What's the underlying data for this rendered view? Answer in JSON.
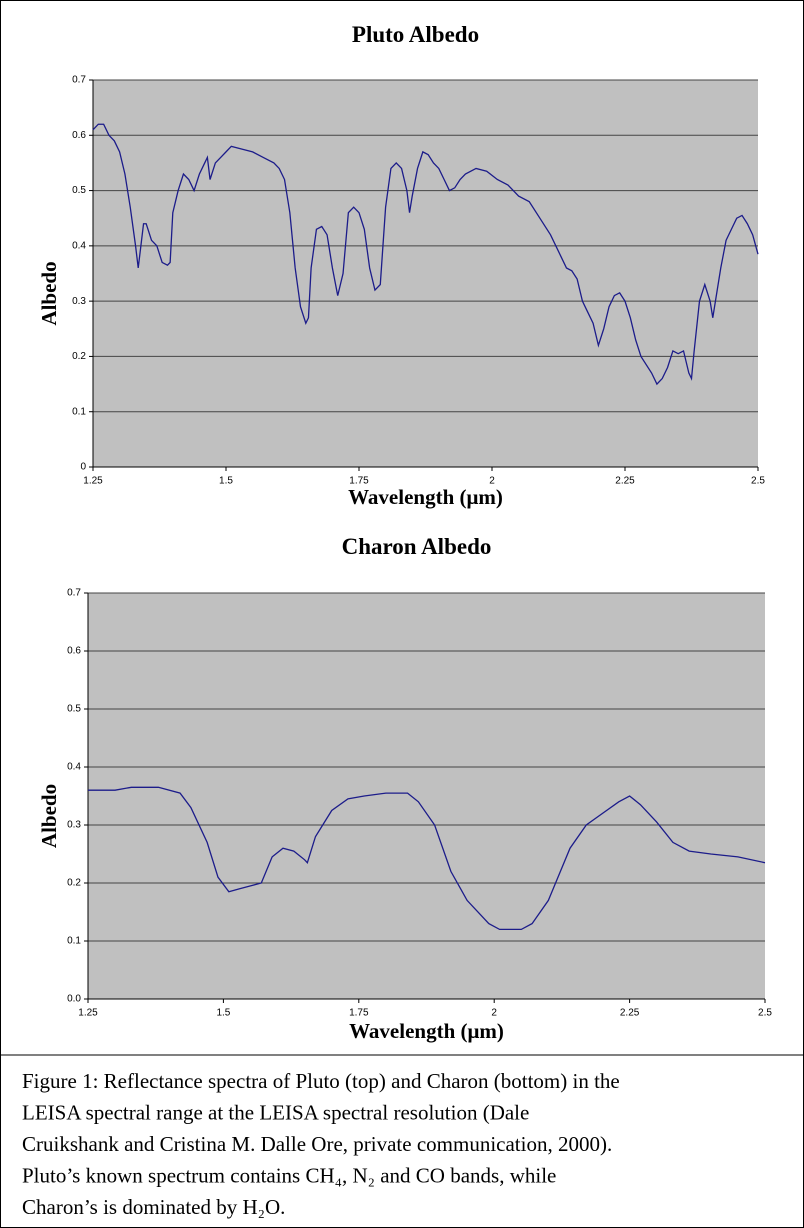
{
  "chart_data": [
    {
      "type": "line",
      "title": "Pluto Albedo",
      "xlabel": "Wavelength (μm)",
      "ylabel": "Albedo",
      "color": "#1c1c8a",
      "grid": true,
      "xlim": [
        1.25,
        2.5
      ],
      "xticks": [
        1.25,
        1.5,
        1.75,
        2,
        2.25,
        2.5
      ],
      "ylim": [
        0,
        0.7
      ],
      "yticks": [
        0,
        0.1,
        0.2,
        0.3,
        0.4,
        0.5,
        0.6,
        0.7
      ],
      "x": [
        1.25,
        1.26,
        1.27,
        1.28,
        1.29,
        1.3,
        1.31,
        1.32,
        1.33,
        1.335,
        1.345,
        1.35,
        1.36,
        1.37,
        1.38,
        1.39,
        1.395,
        1.4,
        1.41,
        1.42,
        1.43,
        1.44,
        1.45,
        1.46,
        1.465,
        1.47,
        1.48,
        1.49,
        1.5,
        1.51,
        1.53,
        1.55,
        1.57,
        1.59,
        1.6,
        1.61,
        1.62,
        1.63,
        1.64,
        1.65,
        1.655,
        1.66,
        1.67,
        1.68,
        1.69,
        1.7,
        1.71,
        1.72,
        1.73,
        1.74,
        1.75,
        1.76,
        1.77,
        1.78,
        1.79,
        1.8,
        1.81,
        1.82,
        1.83,
        1.84,
        1.845,
        1.85,
        1.86,
        1.87,
        1.88,
        1.89,
        1.9,
        1.91,
        1.92,
        1.93,
        1.94,
        1.95,
        1.97,
        1.99,
        2.01,
        2.03,
        2.05,
        2.07,
        2.09,
        2.11,
        2.13,
        2.14,
        2.15,
        2.16,
        2.17,
        2.18,
        2.19,
        2.2,
        2.21,
        2.22,
        2.23,
        2.24,
        2.25,
        2.26,
        2.27,
        2.28,
        2.3,
        2.31,
        2.32,
        2.33,
        2.34,
        2.35,
        2.36,
        2.37,
        2.375,
        2.38,
        2.39,
        2.4,
        2.41,
        2.415,
        2.42,
        2.43,
        2.44,
        2.45,
        2.46,
        2.47,
        2.48,
        2.49,
        2.5
      ],
      "values": [
        0.61,
        0.62,
        0.62,
        0.6,
        0.59,
        0.57,
        0.53,
        0.47,
        0.4,
        0.36,
        0.44,
        0.44,
        0.41,
        0.4,
        0.37,
        0.365,
        0.37,
        0.46,
        0.5,
        0.53,
        0.52,
        0.5,
        0.53,
        0.55,
        0.56,
        0.52,
        0.55,
        0.56,
        0.57,
        0.58,
        0.575,
        0.57,
        0.56,
        0.55,
        0.54,
        0.52,
        0.46,
        0.36,
        0.29,
        0.26,
        0.27,
        0.36,
        0.43,
        0.435,
        0.42,
        0.36,
        0.31,
        0.35,
        0.46,
        0.47,
        0.46,
        0.43,
        0.36,
        0.32,
        0.33,
        0.47,
        0.54,
        0.55,
        0.54,
        0.5,
        0.46,
        0.49,
        0.54,
        0.57,
        0.565,
        0.55,
        0.54,
        0.52,
        0.5,
        0.505,
        0.52,
        0.53,
        0.54,
        0.535,
        0.52,
        0.51,
        0.49,
        0.48,
        0.45,
        0.42,
        0.38,
        0.36,
        0.355,
        0.34,
        0.3,
        0.28,
        0.26,
        0.22,
        0.25,
        0.29,
        0.31,
        0.315,
        0.3,
        0.27,
        0.23,
        0.2,
        0.17,
        0.15,
        0.16,
        0.18,
        0.21,
        0.205,
        0.21,
        0.17,
        0.16,
        0.21,
        0.3,
        0.33,
        0.3,
        0.27,
        0.3,
        0.36,
        0.41,
        0.43,
        0.45,
        0.455,
        0.44,
        0.42,
        0.385
      ]
    },
    {
      "type": "line",
      "title": "Charon Albedo",
      "xlabel": "Wavelength (μm)",
      "ylabel": "Albedo",
      "color": "#1c1c8a",
      "grid": true,
      "xlim": [
        1.25,
        2.5
      ],
      "xticks": [
        1.25,
        1.5,
        1.75,
        2,
        2.25,
        2.5
      ],
      "ylim": [
        0,
        0.7
      ],
      "yticks": [
        {
          "value": 0,
          "label": "0.0"
        },
        0.1,
        0.2,
        0.3,
        0.4,
        0.5,
        0.6,
        0.7
      ],
      "x": [
        1.25,
        1.3,
        1.33,
        1.38,
        1.42,
        1.44,
        1.47,
        1.49,
        1.51,
        1.53,
        1.55,
        1.57,
        1.59,
        1.61,
        1.63,
        1.65,
        1.655,
        1.67,
        1.7,
        1.73,
        1.76,
        1.8,
        1.84,
        1.86,
        1.89,
        1.92,
        1.95,
        1.99,
        2.01,
        2.05,
        2.07,
        2.1,
        2.14,
        2.17,
        2.2,
        2.23,
        2.25,
        2.27,
        2.3,
        2.33,
        2.36,
        2.4,
        2.45,
        2.5
      ],
      "values": [
        0.36,
        0.36,
        0.365,
        0.365,
        0.355,
        0.33,
        0.27,
        0.21,
        0.185,
        0.19,
        0.195,
        0.2,
        0.245,
        0.26,
        0.255,
        0.24,
        0.235,
        0.28,
        0.325,
        0.345,
        0.35,
        0.355,
        0.355,
        0.34,
        0.3,
        0.22,
        0.17,
        0.13,
        0.12,
        0.12,
        0.13,
        0.17,
        0.26,
        0.3,
        0.32,
        0.34,
        0.35,
        0.335,
        0.305,
        0.27,
        0.255,
        0.25,
        0.245,
        0.235
      ]
    }
  ],
  "caption": [
    "Figure 1: Reflectance spectra of Pluto (top) and Charon (bottom) in the",
    "LEISA spectral range at the LEISA spectral resolution (Dale",
    "Cruikshank and Cristina M. Dalle Ore, private communication, 2000).",
    "Pluto’s known spectrum contains CH₄, N₂ and CO bands, while",
    "Charon’s is dominated by H₂O."
  ]
}
